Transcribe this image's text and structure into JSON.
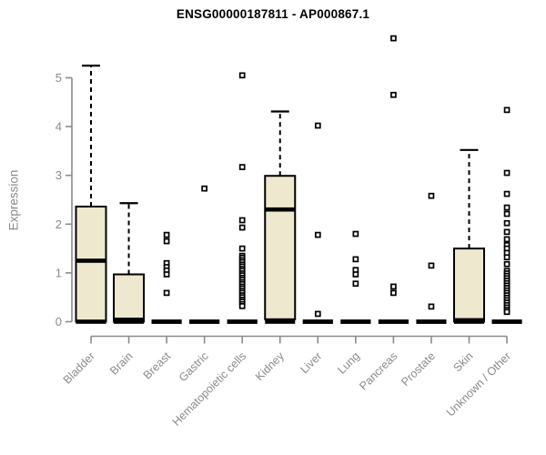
{
  "chart_data": {
    "type": "boxplot",
    "title": "ENSG00000187811 - AP000867.1",
    "ylabel": "Expression",
    "xlabel": "",
    "ylim": [
      0,
      5
    ],
    "yticks": [
      0,
      1,
      2,
      3,
      4,
      5
    ],
    "grid": false,
    "legend": false,
    "colors": {
      "box_fill": "#EDE8CE",
      "box_line": "#000000",
      "axis": "#8a8a8a",
      "tick_label": "#8a8a8a",
      "title": "#000000",
      "background": "#ffffff"
    },
    "categories": [
      "Bladder",
      "Brain",
      "Breast",
      "Gastric",
      "Hematopoietic cells",
      "Kidney",
      "Liver",
      "Lung",
      "Pancreas",
      "Prostate",
      "Skin",
      "Unknown / Other"
    ],
    "series": [
      {
        "label": "Bladder",
        "q1": 0,
        "median": 1.25,
        "q3": 2.36,
        "whisker_low": 0,
        "whisker_high": 5.25,
        "outliers": []
      },
      {
        "label": "Brain",
        "q1": 0,
        "median": 0.04,
        "q3": 0.97,
        "whisker_low": 0,
        "whisker_high": 2.43,
        "outliers": []
      },
      {
        "label": "Breast",
        "q1": 0,
        "median": 0,
        "q3": 0,
        "whisker_low": 0,
        "whisker_high": 0,
        "outliers": [
          1.78,
          1.65,
          1.2,
          1.12,
          1.05,
          0.97,
          0.59
        ]
      },
      {
        "label": "Gastric",
        "q1": 0,
        "median": 0,
        "q3": 0,
        "whisker_low": 0,
        "whisker_high": 0,
        "outliers": [
          2.73
        ]
      },
      {
        "label": "Hematopoietic cells",
        "q1": 0,
        "median": 0,
        "q3": 0,
        "whisker_low": 0,
        "whisker_high": 0,
        "outliers": [
          5.05,
          3.17,
          2.08,
          1.93,
          1.5,
          1.35,
          1.31,
          1.26,
          1.22,
          1.17,
          1.13,
          1.08,
          1.04,
          0.99,
          0.95,
          0.9,
          0.86,
          0.81,
          0.77,
          0.72,
          0.68,
          0.63,
          0.59,
          0.54,
          0.5,
          0.45,
          0.41,
          0.36,
          0.32
        ]
      },
      {
        "label": "Kidney",
        "q1": 0.05,
        "median": 2.3,
        "q3": 2.99,
        "whisker_low": 0,
        "whisker_high": 4.31,
        "outliers": []
      },
      {
        "label": "Liver",
        "q1": 0,
        "median": 0,
        "q3": 0,
        "whisker_low": 0,
        "whisker_high": 0,
        "outliers": [
          4.02,
          1.78,
          0.16
        ]
      },
      {
        "label": "Lung",
        "q1": 0,
        "median": 0,
        "q3": 0,
        "whisker_low": 0,
        "whisker_high": 0,
        "outliers": [
          1.8,
          1.28,
          1.06,
          0.97,
          0.78
        ]
      },
      {
        "label": "Pancreas",
        "q1": 0,
        "median": 0,
        "q3": 0,
        "whisker_low": 0,
        "whisker_high": 0,
        "outliers": [
          5.81,
          4.65,
          0.72,
          0.59
        ]
      },
      {
        "label": "Prostate",
        "q1": 0,
        "median": 0,
        "q3": 0,
        "whisker_low": 0,
        "whisker_high": 0,
        "outliers": [
          2.58,
          1.15,
          0.31
        ]
      },
      {
        "label": "Skin",
        "q1": 0,
        "median": 0.03,
        "q3": 1.5,
        "whisker_low": 0,
        "whisker_high": 3.52,
        "outliers": []
      },
      {
        "label": "Unknown / Other",
        "q1": 0,
        "median": 0,
        "q3": 0,
        "whisker_low": 0,
        "whisker_high": 0,
        "outliers": [
          4.34,
          3.05,
          2.62,
          2.34,
          2.21,
          2.02,
          1.84,
          1.69,
          1.57,
          1.5,
          1.41,
          1.32,
          1.18,
          1.04,
          0.99,
          0.94,
          0.89,
          0.84,
          0.79,
          0.74,
          0.69,
          0.64,
          0.59,
          0.54,
          0.49,
          0.44,
          0.39,
          0.34,
          0.29,
          0.24,
          0.2
        ]
      }
    ]
  }
}
